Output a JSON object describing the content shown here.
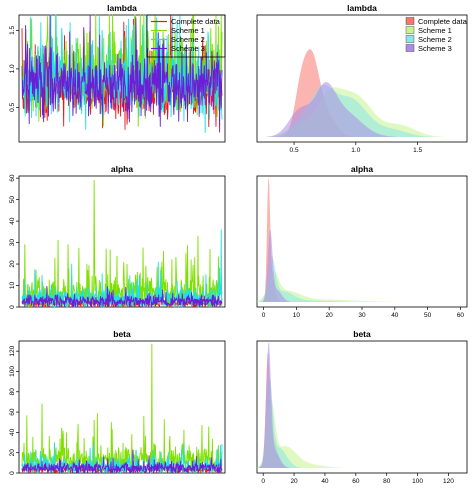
{
  "chart_data": [
    {
      "type": "line",
      "title": "lambda",
      "ylim": [
        0.05,
        1.7
      ],
      "yticks": [
        0.5,
        1.0,
        1.5
      ],
      "ytick_labels": [
        "0.5",
        "1.0",
        "1.5"
      ],
      "n_iterations": 500,
      "legend": "top-right",
      "series": [
        {
          "name": "Complete data",
          "color": "#e41a1c",
          "center": 0.72,
          "spread": 0.18,
          "spike_prob": 0.08,
          "spike_max": 0.75,
          "floor": 0.12
        },
        {
          "name": "Scheme 1",
          "color": "#7fe000",
          "center": 0.92,
          "spread": 0.26,
          "spike_prob": 0.1,
          "spike_max": 0.85,
          "floor": 0.15
        },
        {
          "name": "Scheme 2",
          "color": "#1fe0e6",
          "center": 0.82,
          "spread": 0.22,
          "spike_prob": 0.1,
          "spike_max": 0.85,
          "floor": 0.15
        },
        {
          "name": "Scheme 3",
          "color": "#6a1fd6",
          "center": 0.78,
          "spread": 0.2,
          "spike_prob": 0.08,
          "spike_max": 0.75,
          "floor": 0.15
        }
      ]
    },
    {
      "type": "area",
      "title": "lambda",
      "xlim": [
        0.2,
        1.9
      ],
      "ylim": [
        0,
        3.6
      ],
      "xticks": [
        0.5,
        1.0,
        1.5
      ],
      "xtick_labels": [
        "0.5",
        "1.0",
        "1.5"
      ],
      "legend": "top-right",
      "series": [
        {
          "name": "Complete data",
          "color": "#f8766d",
          "components": [
            [
              0.55,
              0.05,
              1.2
            ],
            [
              0.64,
              0.06,
              2.1
            ],
            [
              0.75,
              0.08,
              0.7
            ]
          ]
        },
        {
          "name": "Scheme 1",
          "color": "#c6f28f",
          "components": [
            [
              0.55,
              0.1,
              0.35
            ],
            [
              0.78,
              0.1,
              1.1
            ],
            [
              1.0,
              0.13,
              1.2
            ],
            [
              1.35,
              0.13,
              0.35
            ]
          ]
        },
        {
          "name": "Scheme 2",
          "color": "#8ce3e8",
          "components": [
            [
              0.55,
              0.08,
              0.4
            ],
            [
              0.72,
              0.09,
              1.2
            ],
            [
              0.95,
              0.14,
              1.15
            ],
            [
              1.3,
              0.12,
              0.2
            ]
          ]
        },
        {
          "name": "Scheme 3",
          "color": "#a98ee8",
          "components": [
            [
              0.55,
              0.09,
              0.8
            ],
            [
              0.75,
              0.08,
              1.15
            ],
            [
              0.9,
              0.14,
              0.75
            ]
          ]
        }
      ]
    },
    {
      "type": "line",
      "title": "alpha",
      "ylim": [
        0,
        61
      ],
      "yticks": [
        0,
        10,
        20,
        30,
        40,
        50,
        60
      ],
      "ytick_labels": [
        "0",
        "10",
        "20",
        "30",
        "40",
        "50",
        "60"
      ],
      "n_iterations": 500,
      "series": [
        {
          "name": "Complete data",
          "color": "#e41a1c",
          "center": 1.5,
          "spread": 0.8,
          "spike_prob": 0.03,
          "spike_max": 4,
          "floor": 0
        },
        {
          "name": "Scheme 1",
          "color": "#7fe000",
          "center": 6,
          "spread": 4,
          "spike_prob": 0.07,
          "spike_max": 22,
          "floor": 0,
          "peaks": [
            [
              0.36,
              59
            ],
            [
              0.18,
              31
            ],
            [
              0.23,
              29
            ],
            [
              0.42,
              27
            ],
            [
              0.82,
              25
            ],
            [
              0.88,
              33
            ],
            [
              0.62,
              19
            ],
            [
              0.7,
              21
            ]
          ]
        },
        {
          "name": "Scheme 2",
          "color": "#1fe0e6",
          "center": 4,
          "spread": 2.5,
          "spike_prob": 0.05,
          "spike_max": 12,
          "floor": 0,
          "peaks": [
            [
              0.995,
              36
            ],
            [
              0.92,
              15
            ]
          ]
        },
        {
          "name": "Scheme 3",
          "color": "#6a1fd6",
          "center": 2.5,
          "spread": 1.4,
          "spike_prob": 0.04,
          "spike_max": 6,
          "floor": 0
        }
      ]
    },
    {
      "type": "area",
      "title": "alpha",
      "xlim": [
        -2,
        62
      ],
      "ylim": [
        0,
        0.62
      ],
      "xticks": [
        0,
        10,
        20,
        30,
        40,
        50,
        60
      ],
      "xtick_labels": [
        "0",
        "10",
        "20",
        "30",
        "40",
        "50",
        "60"
      ],
      "series": [
        {
          "name": "Complete data",
          "color": "#f8766d",
          "components": [
            [
              1.5,
              0.45,
              0.58
            ],
            [
              2.5,
              0.9,
              0.12
            ]
          ]
        },
        {
          "name": "Scheme 1",
          "color": "#c6f28f",
          "components": [
            [
              3,
              1.5,
              0.12
            ],
            [
              7,
              4,
              0.05
            ],
            [
              18,
              10,
              0.012
            ]
          ]
        },
        {
          "name": "Scheme 2",
          "color": "#8ce3e8",
          "components": [
            [
              2.5,
              1.1,
              0.2
            ],
            [
              6,
              3,
              0.05
            ],
            [
              14,
              6,
              0.007
            ]
          ]
        },
        {
          "name": "Scheme 3",
          "color": "#a98ee8",
          "components": [
            [
              2,
              0.7,
              0.34
            ],
            [
              4,
              1.5,
              0.06
            ]
          ]
        }
      ]
    },
    {
      "type": "line",
      "title": "beta",
      "ylim": [
        0,
        130
      ],
      "yticks": [
        0,
        20,
        40,
        60,
        80,
        100,
        120
      ],
      "ytick_labels": [
        "0",
        "20",
        "40",
        "60",
        "80",
        "100",
        "120"
      ],
      "n_iterations": 500,
      "series": [
        {
          "name": "Complete data",
          "color": "#e41a1c",
          "center": 3,
          "spread": 1.5,
          "spike_prob": 0.03,
          "spike_max": 8,
          "floor": 0
        },
        {
          "name": "Scheme 1",
          "color": "#7fe000",
          "center": 12,
          "spread": 7,
          "spike_prob": 0.08,
          "spike_max": 35,
          "floor": 0,
          "peaks": [
            [
              0.65,
              127
            ],
            [
              0.1,
              68
            ],
            [
              0.28,
              48
            ],
            [
              0.36,
              52
            ],
            [
              0.45,
              43
            ],
            [
              0.9,
              47
            ],
            [
              0.74,
              36
            ],
            [
              0.55,
              38
            ]
          ]
        },
        {
          "name": "Scheme 2",
          "color": "#1fe0e6",
          "center": 6,
          "spread": 4,
          "spike_prob": 0.05,
          "spike_max": 20,
          "floor": 0
        },
        {
          "name": "Scheme 3",
          "color": "#6a1fd6",
          "center": 5,
          "spread": 3,
          "spike_prob": 0.04,
          "spike_max": 12,
          "floor": 0
        }
      ]
    },
    {
      "type": "area",
      "title": "beta",
      "xlim": [
        -4,
        132
      ],
      "ylim": [
        0,
        0.215
      ],
      "xticks": [
        0,
        20,
        40,
        60,
        80,
        100,
        120
      ],
      "xtick_labels": [
        "0",
        "20",
        "40",
        "60",
        "80",
        "100",
        "120"
      ],
      "series": [
        {
          "name": "Complete data",
          "color": "#f8766d",
          "components": [
            [
              3,
              1.3,
              0.17
            ],
            [
              6,
              3,
              0.05
            ]
          ]
        },
        {
          "name": "Scheme 1",
          "color": "#c6f28f",
          "components": [
            [
              5,
              2.5,
              0.1
            ],
            [
              14,
              7,
              0.035
            ],
            [
              28,
              10,
              0.006
            ]
          ]
        },
        {
          "name": "Scheme 2",
          "color": "#8ce3e8",
          "components": [
            [
              4,
              2,
              0.14
            ],
            [
              10,
              5,
              0.035
            ]
          ]
        },
        {
          "name": "Scheme 3",
          "color": "#a98ee8",
          "components": [
            [
              3.5,
              1.5,
              0.2
            ],
            [
              7,
              3.5,
              0.03
            ]
          ]
        }
      ]
    }
  ]
}
